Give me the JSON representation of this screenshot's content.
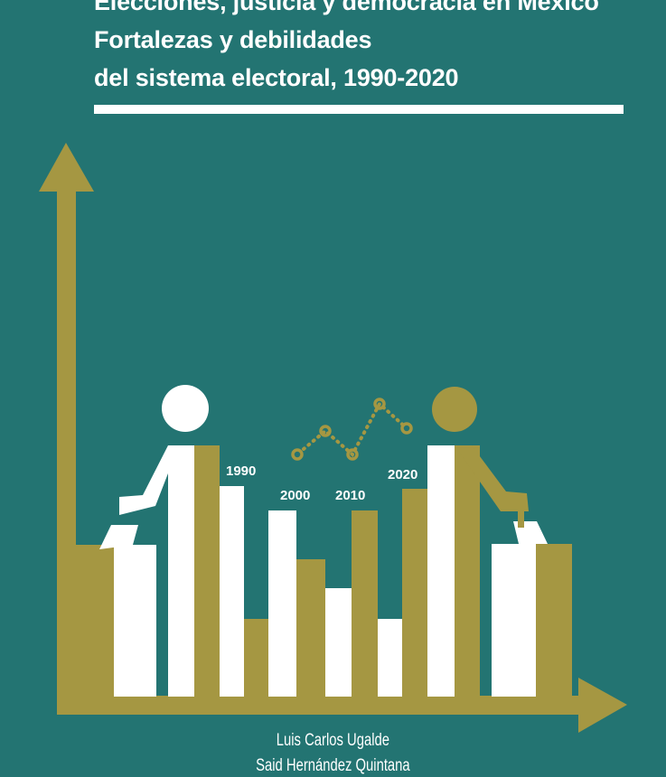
{
  "cover": {
    "title_lines": [
      "Elecciones, justicia y democracia en México",
      "Fortalezas y debilidades",
      "del sistema electoral, 1990-2020"
    ],
    "year_labels": [
      "1990",
      "2000",
      "2010",
      "2020"
    ],
    "authors": [
      "Luis Carlos Ugalde",
      "Said Hernández Quintana"
    ],
    "colors": {
      "background": "#237472",
      "gold": "#a59742",
      "white": "#ffffff"
    }
  }
}
